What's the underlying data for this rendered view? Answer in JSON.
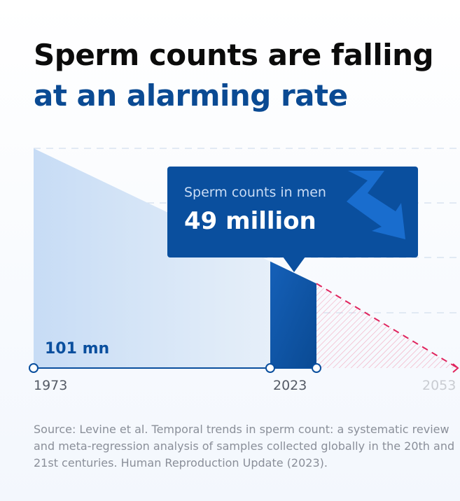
{
  "title": {
    "line1": "Sperm counts are falling",
    "line2": "at an alarming rate"
  },
  "callout": {
    "label": "Sperm counts in men",
    "value": "49 million"
  },
  "start_label": "101 mn",
  "source": "Source: Levine et al. Temporal trends in sperm count: a systematic review and meta-regression analysis of samples collected globally in the 20th and 21st centuries. Human Reproduction Update (2023).",
  "colors": {
    "dark_blue": "#0a4f9e",
    "title_blue": "#0a4a93",
    "light_fill": "#cfe2f7",
    "projection_red": "#e0245e"
  },
  "chart_data": {
    "type": "area",
    "x": [
      1973,
      2023
    ],
    "y": [
      101,
      49
    ],
    "x_tick_labels": [
      "1973",
      "2023",
      "2053"
    ],
    "projection": {
      "x": [
        2023,
        2053
      ],
      "y": [
        49,
        0
      ]
    },
    "units": "million",
    "grid": true
  }
}
